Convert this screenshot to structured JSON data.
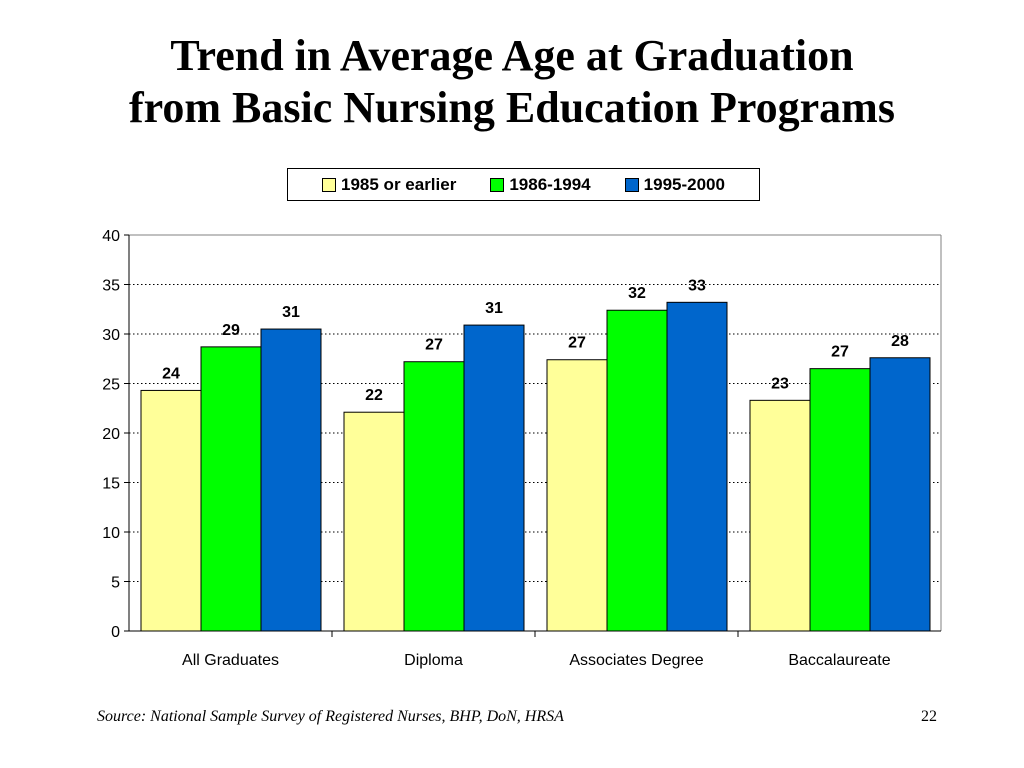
{
  "slide": {
    "title_line1": "Trend in Average Age at Graduation",
    "title_line2": "from Basic Nursing Education Programs",
    "source": "Source: National Sample Survey of Registered Nurses, BHP, DoN, HRSA",
    "page_number": "22"
  },
  "legend": [
    {
      "label": "1985 or earlier",
      "color": "#FFFF99"
    },
    {
      "label": "1986-1994",
      "color": "#00FF00"
    },
    {
      "label": "1995-2000",
      "color": "#0066CC"
    }
  ],
  "chart_data": {
    "type": "bar",
    "title": "",
    "xlabel": "",
    "ylabel": "",
    "categories": [
      "All Graduates",
      "Diploma",
      "Associates Degree",
      "Baccalaureate"
    ],
    "series": [
      {
        "name": "1985 or earlier",
        "values": [
          24.3,
          22.1,
          27.4,
          23.3
        ],
        "labels": [
          "24",
          "22",
          "27",
          "23"
        ],
        "color": "#FFFF99"
      },
      {
        "name": "1986-1994",
        "values": [
          28.7,
          27.2,
          32.4,
          26.5
        ],
        "labels": [
          "29",
          "27",
          "32",
          "27"
        ],
        "color": "#00FF00"
      },
      {
        "name": "1995-2000",
        "values": [
          30.5,
          30.9,
          33.2,
          27.6
        ],
        "labels": [
          "31",
          "31",
          "33",
          "28"
        ],
        "color": "#0066CC"
      }
    ],
    "ylim": [
      0,
      40
    ],
    "yticks": [
      "0",
      "5",
      "10",
      "15",
      "20",
      "25",
      "30",
      "35",
      "40"
    ],
    "grid": true,
    "legend_position": "top"
  }
}
